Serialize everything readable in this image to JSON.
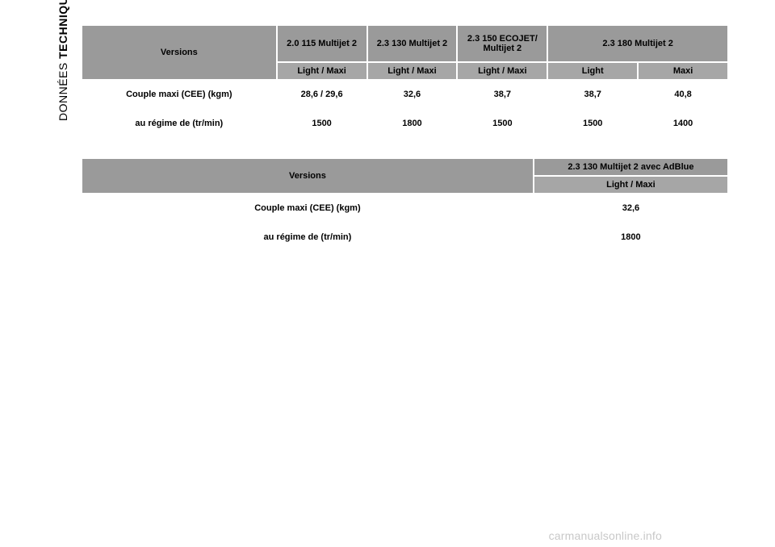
{
  "side_label": {
    "light": "DONNÉES ",
    "bold": "TECHNIQUES"
  },
  "colors": {
    "header_gray": "#9a9a9a",
    "header_light": "#a6a6a6",
    "white": "#ffffff",
    "text": "#000000",
    "watermark": "#c8c8c8"
  },
  "table1": {
    "row_versions_label": "Versions",
    "engines": [
      "2.0 115 Multijet 2",
      "2.3 130 Multijet 2",
      "2.3 150 ECOJET/ Multijet 2",
      "2.3 180 Multijet 2"
    ],
    "sub_headers": [
      "Light / Maxi",
      "Light / Maxi",
      "Light / Maxi",
      "Light",
      "Maxi"
    ],
    "data_row_label": "Couple maxi (CEE) (kgm)",
    "data_row_values": [
      "28,6 / 29,6",
      "32,6",
      "38,7",
      "38,7",
      "40,8"
    ],
    "rpm_row_label": "au régime de (tr/min)",
    "rpm_row_values": [
      "1500",
      "1800",
      "1500",
      "1500",
      "1400"
    ]
  },
  "table2": {
    "row_versions_label": "Versions",
    "engine_header": "2.3 130 Multijet 2 avec AdBlue",
    "sub_header": "Light / Maxi",
    "data_row_label": "Couple maxi (CEE) (kgm)",
    "data_row_value": "32,6",
    "rpm_row_label": "au régime de (tr/min)",
    "rpm_row_value": "1800"
  },
  "watermark": "carmanualsonline.info"
}
